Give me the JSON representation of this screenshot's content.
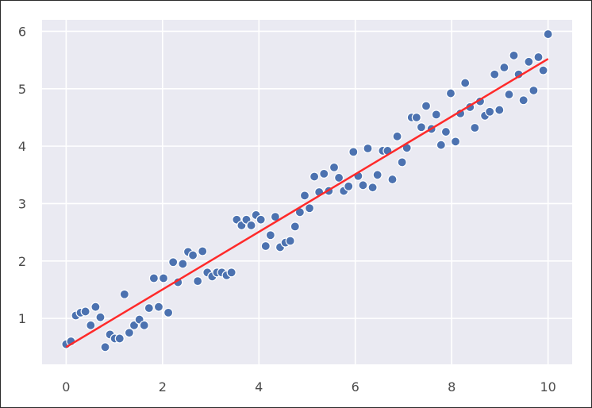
{
  "chart_data": {
    "type": "scatter",
    "title": "",
    "xlabel": "",
    "ylabel": "",
    "xlim": [
      -0.5,
      10.5
    ],
    "ylim": [
      0.2,
      6.2
    ],
    "xticks": [
      "0",
      "2",
      "4",
      "6",
      "8",
      "10"
    ],
    "yticks": [
      "1",
      "2",
      "3",
      "4",
      "5",
      "6"
    ],
    "grid": true,
    "legend": "none",
    "colors": {
      "plot_background": "#eaeaf2",
      "grid": "#ffffff",
      "points": "#4c72b0",
      "fit_line": "#ff2a2a"
    },
    "series": [
      {
        "kind": "points",
        "x": [
          0.0,
          0.1,
          0.2,
          0.3,
          0.4,
          0.51,
          0.61,
          0.71,
          0.81,
          0.91,
          1.01,
          1.11,
          1.21,
          1.31,
          1.41,
          1.52,
          1.62,
          1.72,
          1.82,
          1.92,
          2.02,
          2.12,
          2.22,
          2.32,
          2.42,
          2.53,
          2.63,
          2.73,
          2.83,
          2.93,
          3.03,
          3.13,
          3.23,
          3.33,
          3.43,
          3.54,
          3.64,
          3.74,
          3.84,
          3.94,
          4.04,
          4.14,
          4.24,
          4.34,
          4.44,
          4.55,
          4.65,
          4.75,
          4.85,
          4.95,
          5.05,
          5.15,
          5.25,
          5.35,
          5.45,
          5.56,
          5.66,
          5.76,
          5.86,
          5.96,
          6.06,
          6.16,
          6.26,
          6.36,
          6.46,
          6.57,
          6.67,
          6.77,
          6.87,
          6.97,
          7.07,
          7.17,
          7.27,
          7.37,
          7.47,
          7.58,
          7.68,
          7.78,
          7.88,
          7.98,
          8.08,
          8.18,
          8.28,
          8.38,
          8.48,
          8.59,
          8.69,
          8.79,
          8.89,
          8.99,
          9.09,
          9.19,
          9.29,
          9.39,
          9.49,
          9.6,
          9.7,
          9.8,
          9.9,
          10.0
        ],
        "y": [
          0.55,
          0.6,
          1.05,
          1.1,
          1.12,
          0.88,
          1.2,
          1.02,
          0.5,
          0.72,
          0.65,
          0.65,
          1.42,
          0.75,
          0.88,
          0.98,
          0.88,
          1.18,
          1.7,
          1.2,
          1.7,
          1.1,
          1.98,
          1.63,
          1.95,
          2.16,
          2.1,
          1.65,
          2.17,
          1.8,
          1.73,
          1.8,
          1.8,
          1.75,
          1.8,
          2.72,
          2.62,
          2.72,
          2.62,
          2.8,
          2.72,
          2.26,
          2.45,
          2.77,
          2.24,
          2.32,
          2.35,
          2.6,
          2.85,
          3.14,
          2.92,
          3.47,
          3.2,
          3.52,
          3.22,
          3.63,
          3.45,
          3.22,
          3.3,
          3.9,
          3.48,
          3.32,
          3.96,
          3.28,
          3.5,
          3.92,
          3.92,
          3.42,
          4.17,
          3.72,
          3.97,
          4.5,
          4.5,
          4.33,
          4.7,
          4.3,
          4.55,
          4.02,
          4.25,
          4.92,
          4.08,
          4.57,
          5.1,
          4.68,
          4.32,
          4.78,
          4.53,
          4.6,
          5.25,
          4.63,
          5.37,
          4.9,
          5.58,
          5.25,
          4.8,
          5.47,
          4.97,
          5.55,
          5.32,
          5.95
        ]
      },
      {
        "kind": "regression-line",
        "x": [
          0,
          10
        ],
        "y": [
          0.5,
          5.52
        ]
      }
    ]
  }
}
